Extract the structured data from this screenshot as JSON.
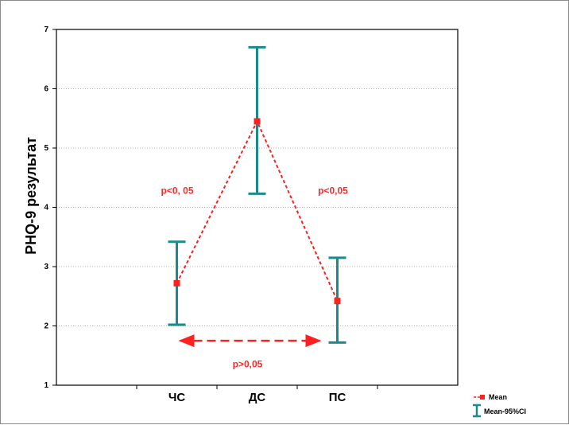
{
  "chart_data": {
    "type": "line",
    "title": "",
    "xlabel": "",
    "ylabel": "PHQ-9 результат",
    "ylim": [
      1,
      7
    ],
    "yticks": [
      "1",
      "2",
      "3",
      "4",
      "5",
      "6",
      "7"
    ],
    "categories": [
      "ЧС",
      "ДС",
      "ПС"
    ],
    "grid": true,
    "legend_position": "bottom-right outside",
    "series": [
      {
        "name": "Mean",
        "values": [
          2.72,
          5.45,
          2.42
        ],
        "ci_low": [
          2.02,
          4.23,
          1.72
        ],
        "ci_high": [
          3.42,
          6.7,
          3.15
        ]
      }
    ],
    "annotations": [
      {
        "text": "p<0, 05",
        "between": [
          "ЧС",
          "ДС"
        ]
      },
      {
        "text": "p<0,05",
        "between": [
          "ДС",
          "ПС"
        ]
      },
      {
        "text": "p>0,05",
        "between": [
          "ЧС",
          "ПС"
        ]
      }
    ],
    "legend": [
      {
        "label": "Mean"
      },
      {
        "label": "Mean-95%CI"
      }
    ]
  },
  "colors": {
    "mean": "#ff2020",
    "ci": "#1a8a8a",
    "grid": "#b0b0b0",
    "axis": "#000000"
  }
}
